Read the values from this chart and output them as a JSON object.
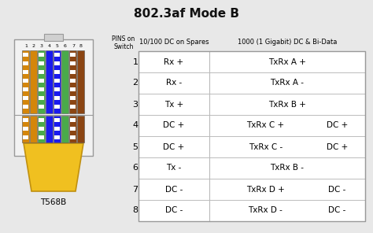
{
  "title": "802.3af Mode B",
  "title_fontsize": 11,
  "background_color": "#e8e8e8",
  "col1_label": "PINS on\nSwitch",
  "col2_label": "10/100 DC on Spares",
  "col3_label": "1000 (1 Gigabit) DC & Bi-Data",
  "rows": [
    {
      "pin": 1,
      "col2": "Rx +",
      "col3_left": "TxRx A +",
      "col3_right": ""
    },
    {
      "pin": 2,
      "col2": "Rx -",
      "col3_left": "TxRx A -",
      "col3_right": ""
    },
    {
      "pin": 3,
      "col2": "Tx +",
      "col3_left": "TxRx B +",
      "col3_right": ""
    },
    {
      "pin": 4,
      "col2": "DC +",
      "col3_left": "TxRx C +",
      "col3_right": "DC +"
    },
    {
      "pin": 5,
      "col2": "DC +",
      "col3_left": "TxRx C -",
      "col3_right": "DC +"
    },
    {
      "pin": 6,
      "col2": "Tx -",
      "col3_left": "TxRx B -",
      "col3_right": ""
    },
    {
      "pin": 7,
      "col2": "DC -",
      "col3_left": "TxRx D +",
      "col3_right": "DC -"
    },
    {
      "pin": 8,
      "col2": "DC -",
      "col3_left": "TxRx D -",
      "col3_right": "DC -"
    }
  ],
  "connector_label": "T568B",
  "t568b_wires": [
    {
      "color": "#d4860a",
      "stripe": true
    },
    {
      "color": "#d4860a",
      "stripe": false
    },
    {
      "color": "#4aaa4a",
      "stripe": true
    },
    {
      "color": "#1a1aee",
      "stripe": false
    },
    {
      "color": "#1a1aee",
      "stripe": true
    },
    {
      "color": "#4aaa4a",
      "stripe": false
    },
    {
      "color": "#8B4513",
      "stripe": true
    },
    {
      "color": "#8B4513",
      "stripe": false
    }
  ]
}
